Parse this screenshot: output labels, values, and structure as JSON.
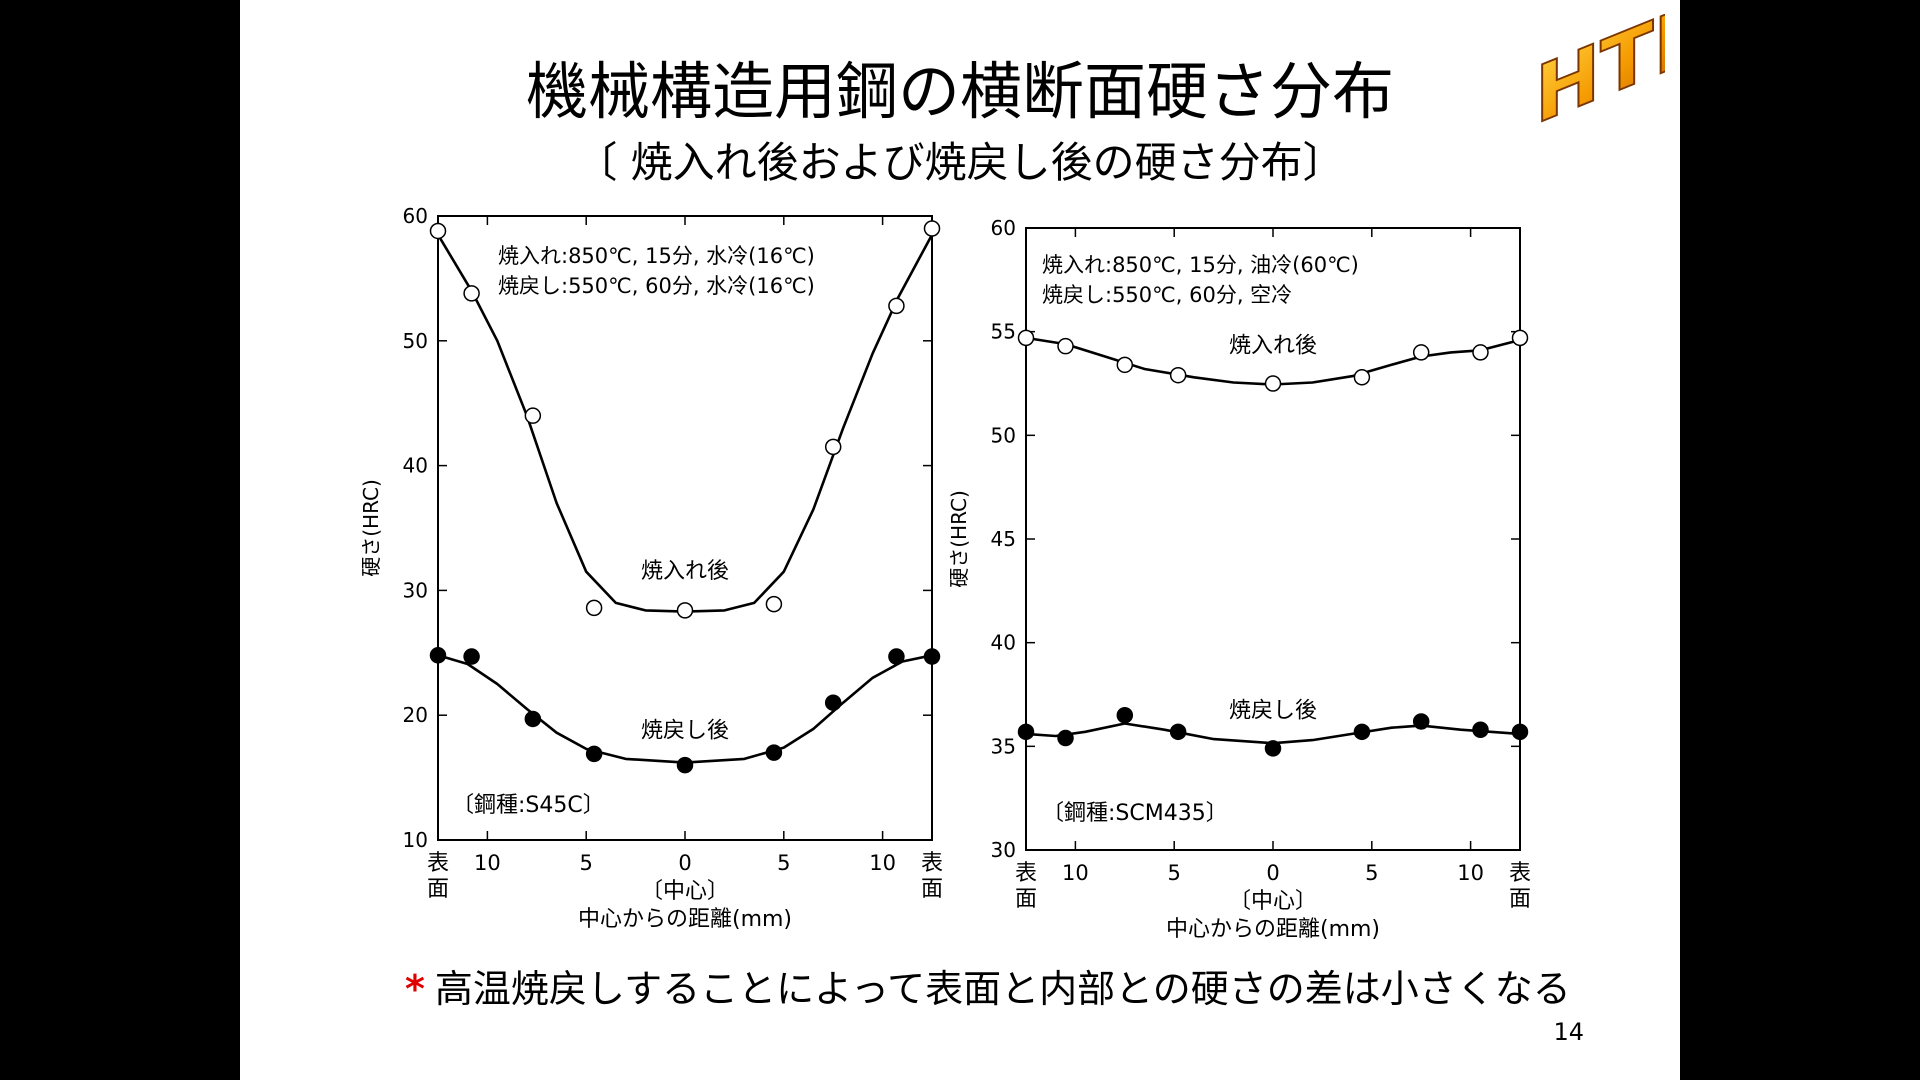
{
  "slide": {
    "title": "機械構造用鋼の横断面硬さ分布",
    "subtitle": "〔 焼入れ後および焼戻し後の硬さ分布〕",
    "logo_text": "HTH",
    "note_symbol": "*",
    "note": "高温焼戻しすることによって表面と内部との硬さの差は小さくなる",
    "page_number": "14"
  },
  "chart_data": [
    {
      "type": "line",
      "ylabel": "硬さ(HRC)",
      "xlabel": "中心からの距離(mm)",
      "ylim": [
        10,
        60
      ],
      "yticks": [
        10,
        20,
        30,
        40,
        50,
        60
      ],
      "xlim": [
        -12.5,
        12.5
      ],
      "xtick_positions": [
        -10,
        -5,
        0,
        5,
        10
      ],
      "xtick_labels": [
        "10",
        "5",
        "0",
        "5",
        "10"
      ],
      "edge_label_chars": [
        "表",
        "面"
      ],
      "center_label": "〔中心〕",
      "conditions": [
        "焼入れ:850℃, 15分, 水冷(16℃)",
        "焼戻し:550℃, 60分, 水冷(16℃)"
      ],
      "steel_label": "〔鋼種:S45C〕",
      "series": [
        {
          "name": "焼入れ後",
          "marker": "open",
          "label_at": [
            0,
            31
          ],
          "x": [
            -12.5,
            -10.8,
            -7.7,
            -4.6,
            0,
            4.5,
            7.5,
            10.7,
            12.5
          ],
          "y": [
            58.8,
            53.8,
            44.0,
            28.6,
            28.4,
            28.9,
            41.5,
            52.8,
            59.0
          ],
          "curve": [
            [
              -12.5,
              58.5
            ],
            [
              -10.8,
              54
            ],
            [
              -9.5,
              50
            ],
            [
              -8,
              44
            ],
            [
              -6.5,
              37
            ],
            [
              -5,
              31.5
            ],
            [
              -3.5,
              29
            ],
            [
              -2,
              28.4
            ],
            [
              0,
              28.3
            ],
            [
              2,
              28.4
            ],
            [
              3.5,
              29
            ],
            [
              5,
              31.5
            ],
            [
              6.5,
              36.5
            ],
            [
              8,
              43
            ],
            [
              9.5,
              49
            ],
            [
              10.8,
              53.5
            ],
            [
              12.5,
              58.5
            ]
          ]
        },
        {
          "name": "焼戻し後",
          "marker": "filled",
          "label_at": [
            0,
            18.2
          ],
          "x": [
            -12.5,
            -10.8,
            -7.7,
            -4.6,
            0,
            4.5,
            7.5,
            10.7,
            12.5
          ],
          "y": [
            24.8,
            24.7,
            19.7,
            16.9,
            16.0,
            17.0,
            21.0,
            24.7,
            24.7
          ],
          "curve": [
            [
              -12.5,
              24.8
            ],
            [
              -11,
              24.1
            ],
            [
              -9.5,
              22.5
            ],
            [
              -8,
              20.5
            ],
            [
              -6.5,
              18.6
            ],
            [
              -5,
              17.3
            ],
            [
              -3,
              16.5
            ],
            [
              0,
              16.2
            ],
            [
              3,
              16.5
            ],
            [
              5,
              17.4
            ],
            [
              6.5,
              18.9
            ],
            [
              8,
              21
            ],
            [
              9.5,
              23
            ],
            [
              11,
              24.3
            ],
            [
              12.5,
              24.8
            ]
          ]
        }
      ]
    },
    {
      "type": "line",
      "ylabel": "硬さ(HRC)",
      "xlabel": "中心からの距離(mm)",
      "ylim": [
        30,
        60
      ],
      "yticks": [
        30,
        35,
        40,
        45,
        50,
        55,
        60
      ],
      "xlim": [
        -12.5,
        12.5
      ],
      "xtick_positions": [
        -10,
        -5,
        0,
        5,
        10
      ],
      "xtick_labels": [
        "10",
        "5",
        "0",
        "5",
        "10"
      ],
      "edge_label_chars": [
        "表",
        "面"
      ],
      "center_label": "〔中心〕",
      "conditions": [
        "焼入れ:850℃, 15分, 油冷(60℃)",
        "焼戻し:550℃, 60分, 空冷"
      ],
      "steel_label": "〔鋼種:SCM435〕",
      "series": [
        {
          "name": "焼入れ後",
          "marker": "open",
          "label_at": [
            0,
            54
          ],
          "x": [
            -12.5,
            -10.5,
            -7.5,
            -4.8,
            0,
            4.5,
            7.5,
            10.5,
            12.5
          ],
          "y": [
            54.7,
            54.3,
            53.4,
            52.9,
            52.5,
            52.8,
            54.0,
            54.0,
            54.7
          ],
          "curve": [
            [
              -12.5,
              54.7
            ],
            [
              -10.5,
              54.4
            ],
            [
              -8.5,
              53.8
            ],
            [
              -6.5,
              53.2
            ],
            [
              -4,
              52.8
            ],
            [
              -2,
              52.55
            ],
            [
              0,
              52.45
            ],
            [
              2,
              52.55
            ],
            [
              4,
              52.85
            ],
            [
              6,
              53.4
            ],
            [
              7.5,
              53.8
            ],
            [
              9,
              54
            ],
            [
              10.5,
              54.1
            ],
            [
              12.5,
              54.6
            ]
          ]
        },
        {
          "name": "焼戻し後",
          "marker": "filled",
          "label_at": [
            0,
            36.4
          ],
          "x": [
            -12.5,
            -10.5,
            -7.5,
            -4.8,
            0,
            4.5,
            7.5,
            10.5,
            12.5
          ],
          "y": [
            35.7,
            35.4,
            36.5,
            35.7,
            34.9,
            35.7,
            36.2,
            35.8,
            35.7
          ],
          "curve": [
            [
              -12.5,
              35.6
            ],
            [
              -11,
              35.5
            ],
            [
              -9.5,
              35.7
            ],
            [
              -7.5,
              36.1
            ],
            [
              -5.5,
              35.8
            ],
            [
              -3,
              35.35
            ],
            [
              0,
              35.15
            ],
            [
              2,
              35.3
            ],
            [
              4,
              35.6
            ],
            [
              6,
              35.9
            ],
            [
              7.5,
              36.0
            ],
            [
              9.5,
              35.8
            ],
            [
              11,
              35.7
            ],
            [
              12.5,
              35.6
            ]
          ]
        }
      ]
    }
  ]
}
